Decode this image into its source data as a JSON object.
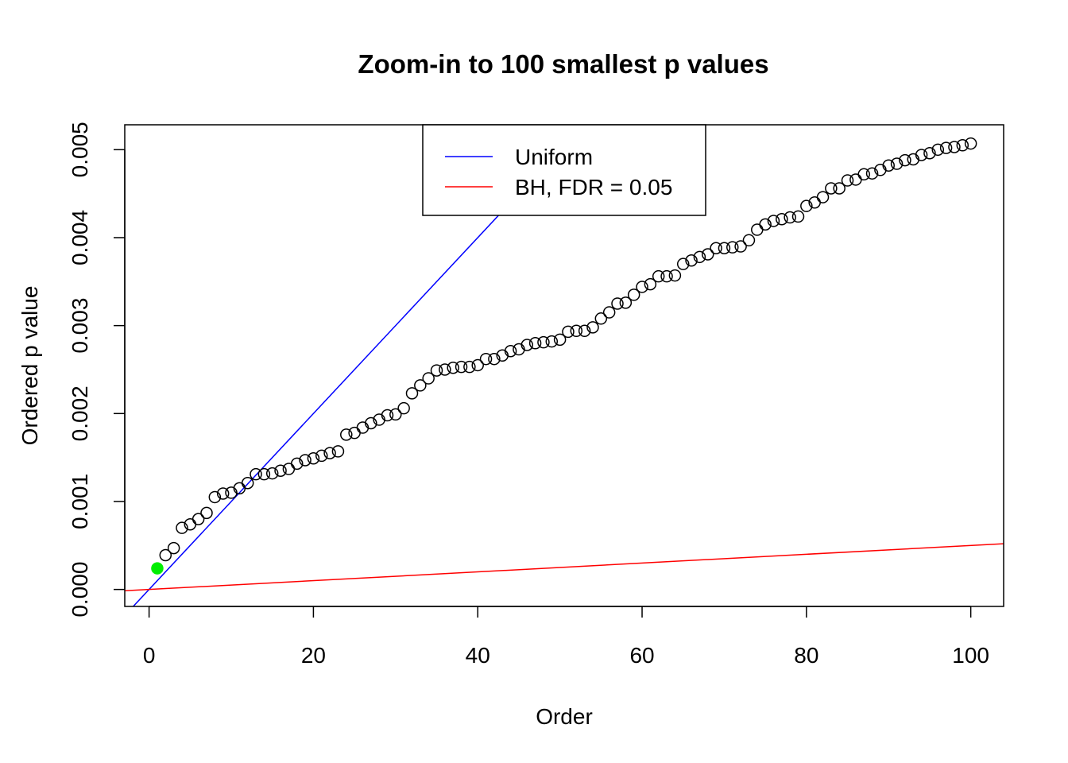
{
  "chart_data": {
    "type": "scatter",
    "title": "Zoom-in to 100 smallest p values",
    "xlabel": "Order",
    "ylabel": "Ordered p value",
    "xlim": [
      -2.96,
      104.0
    ],
    "ylim": [
      -0.000193,
      0.005283
    ],
    "xticks": [
      0,
      20,
      40,
      60,
      80,
      100
    ],
    "xtick_labels": [
      "0",
      "20",
      "40",
      "60",
      "80",
      "100"
    ],
    "yticks": [
      0,
      0.001,
      0.002,
      0.003,
      0.004,
      0.005
    ],
    "ytick_labels": [
      "0.000",
      "0.001",
      "0.002",
      "0.003",
      "0.004",
      "0.005"
    ],
    "grid": false,
    "legend": {
      "position": "top-center",
      "entries": [
        {
          "label": "Uniform",
          "color": "#0000ff"
        },
        {
          "label": "BH, FDR = 0.05",
          "color": "#ff0000"
        }
      ]
    },
    "lines": [
      {
        "name": "Uniform",
        "color": "#0000ff",
        "intercept": 0,
        "slope": 0.0001
      },
      {
        "name": "BH, FDR = 0.05",
        "color": "#ff0000",
        "intercept": 0,
        "slope": 5e-06
      }
    ],
    "points": {
      "x": [
        1,
        2,
        3,
        4,
        5,
        6,
        7,
        8,
        9,
        10,
        11,
        12,
        13,
        14,
        15,
        16,
        17,
        18,
        19,
        20,
        21,
        22,
        23,
        24,
        25,
        26,
        27,
        28,
        29,
        30,
        31,
        32,
        33,
        34,
        35,
        36,
        37,
        38,
        39,
        40,
        41,
        42,
        43,
        44,
        45,
        46,
        47,
        48,
        49,
        50,
        51,
        52,
        53,
        54,
        55,
        56,
        57,
        58,
        59,
        60,
        61,
        62,
        63,
        64,
        65,
        66,
        67,
        68,
        69,
        70,
        71,
        72,
        73,
        74,
        75,
        76,
        77,
        78,
        79,
        80,
        81,
        82,
        83,
        84,
        85,
        86,
        87,
        88,
        89,
        90,
        91,
        92,
        93,
        94,
        95,
        96,
        97,
        98,
        99,
        100
      ],
      "y": [
        0.00024,
        0.00039,
        0.00047,
        0.0007,
        0.00074,
        0.0008,
        0.00087,
        0.00105,
        0.00109,
        0.0011,
        0.00115,
        0.00121,
        0.00131,
        0.00131,
        0.00132,
        0.00135,
        0.00137,
        0.00143,
        0.00147,
        0.00149,
        0.00152,
        0.00155,
        0.00157,
        0.00176,
        0.00178,
        0.00184,
        0.00189,
        0.00193,
        0.00198,
        0.00199,
        0.00206,
        0.00223,
        0.00232,
        0.0024,
        0.00249,
        0.0025,
        0.00252,
        0.00253,
        0.00253,
        0.00255,
        0.00262,
        0.00262,
        0.00266,
        0.00271,
        0.00273,
        0.00278,
        0.0028,
        0.00281,
        0.00282,
        0.00284,
        0.00293,
        0.00294,
        0.00294,
        0.00298,
        0.00308,
        0.00315,
        0.00325,
        0.00326,
        0.00335,
        0.00344,
        0.00347,
        0.00356,
        0.00356,
        0.00357,
        0.0037,
        0.00374,
        0.00378,
        0.00381,
        0.00388,
        0.00388,
        0.00389,
        0.0039,
        0.00397,
        0.00409,
        0.00415,
        0.00419,
        0.00421,
        0.00423,
        0.00424,
        0.00436,
        0.0044,
        0.00446,
        0.00456,
        0.00456,
        0.00465,
        0.00466,
        0.00472,
        0.00473,
        0.00477,
        0.00482,
        0.00484,
        0.00488,
        0.00489,
        0.00494,
        0.00496,
        0.005,
        0.00502,
        0.00503,
        0.00505,
        0.00507
      ],
      "marker": "open-circle",
      "highlight": {
        "index": 0,
        "color": "#00ee00"
      }
    }
  }
}
